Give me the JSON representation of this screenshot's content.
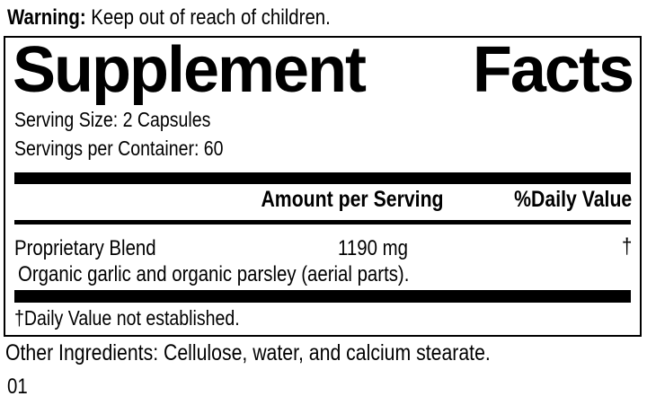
{
  "colors": {
    "ink": "#000000",
    "paper": "#ffffff"
  },
  "warning": {
    "label": "Warning:",
    "text": "Keep out of reach of children."
  },
  "panel": {
    "title": {
      "word1": "Supplement",
      "word2": "Facts"
    },
    "serving_size": "Serving Size: 2 Capsules",
    "servings_per_container": "Servings per Container: 60",
    "columns": {
      "amount": "Amount per Serving",
      "daily_value": "%Daily Value"
    },
    "rows": [
      {
        "name": "Proprietary Blend",
        "amount": "1190 mg",
        "daily_value": "†",
        "description": "Organic garlic and organic parsley (aerial parts)."
      }
    ],
    "footnote": "†Daily Value not established."
  },
  "other_ingredients": "Other Ingredients: Cellulose, water, and calcium stearate.",
  "lot_code": "01"
}
